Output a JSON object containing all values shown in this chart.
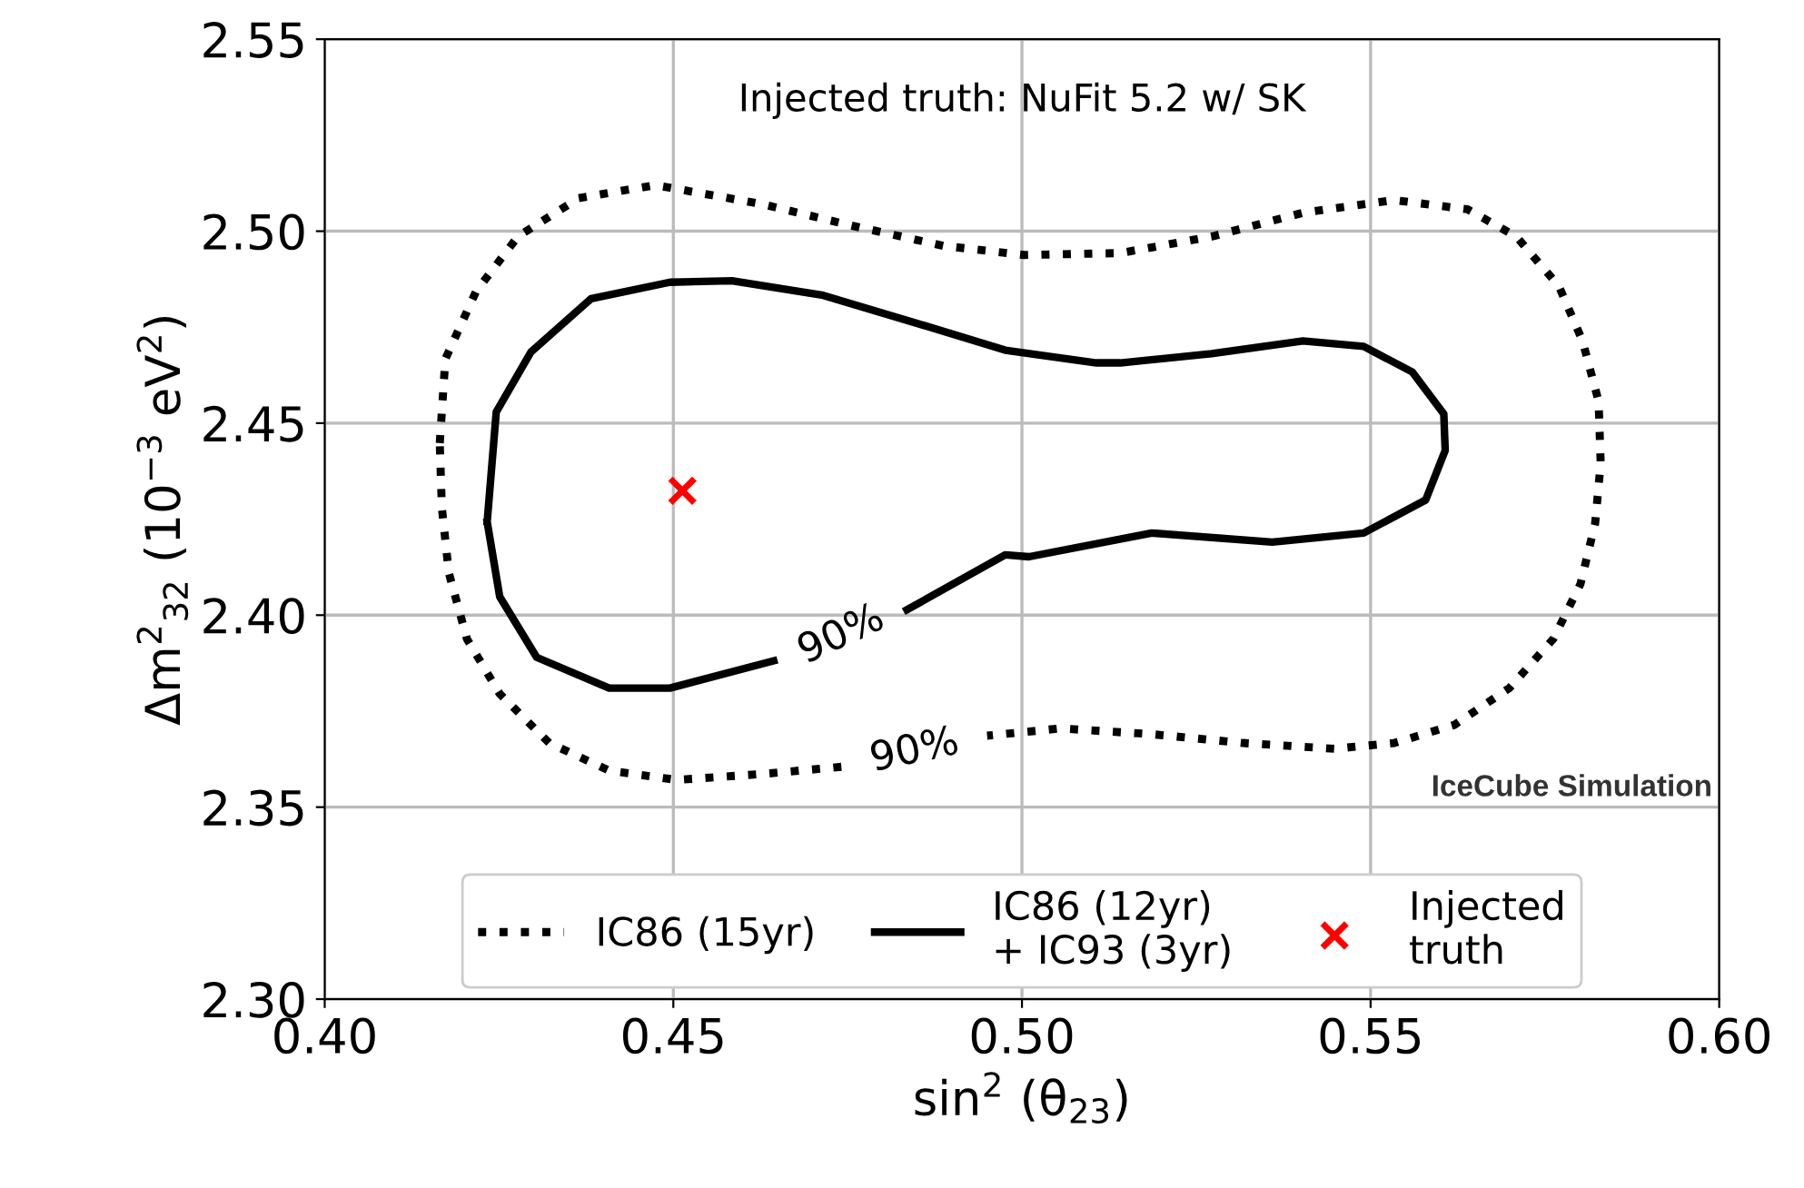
{
  "chart_data": {
    "type": "line",
    "xlabel": "sin$^{2}$ (θ$_{23}$)",
    "ylabel": "Δm$^{2}$$_{32}$ (10$^{−3}$ eV$^{2}$)",
    "xlim": [
      0.4,
      0.6
    ],
    "xticks": [
      {
        "value": 0.4,
        "label": "0.40"
      },
      {
        "value": 0.45,
        "label": "0.45"
      },
      {
        "value": 0.5,
        "label": "0.50"
      },
      {
        "value": 0.55,
        "label": "0.55"
      },
      {
        "value": 0.6,
        "label": "0.60"
      }
    ],
    "ylim": [
      2.3,
      2.55
    ],
    "yticks": [
      {
        "value": 2.3,
        "label": "2.30"
      },
      {
        "value": 2.35,
        "label": "2.35"
      },
      {
        "value": 2.4,
        "label": "2.40"
      },
      {
        "value": 2.45,
        "label": "2.45"
      },
      {
        "value": 2.5,
        "label": "2.50"
      },
      {
        "value": 2.55,
        "label": "2.55"
      }
    ],
    "grid": true,
    "legend": "bottom",
    "marker": "none",
    "series": [
      {
        "name": "IC86 (15yr)",
        "line_style": "dotted",
        "color": "#000000",
        "x": [
          0.4165,
          0.4173,
          0.4217,
          0.4277,
          0.4364,
          0.4474,
          0.4626,
          0.4757,
          0.4887,
          0.5003,
          0.5141,
          0.5272,
          0.5403,
          0.5534,
          0.5639,
          0.5709,
          0.577,
          0.5804,
          0.5827,
          0.583,
          0.5822,
          0.5801,
          0.5762,
          0.5699,
          0.562,
          0.5534,
          0.5448,
          0.5317,
          0.5186,
          0.5055,
          0.495,
          0.4846,
          0.4741,
          0.4626,
          0.4505,
          0.4408,
          0.4322,
          0.4251,
          0.4204,
          0.4178,
          0.4168,
          0.4165
        ],
        "values": [
          2.4448,
          2.4667,
          2.4843,
          2.4986,
          2.5086,
          2.512,
          2.5071,
          2.5014,
          2.4962,
          2.4938,
          2.4943,
          2.4986,
          2.5048,
          2.5081,
          2.5057,
          2.4986,
          2.4857,
          2.4714,
          2.4557,
          2.4395,
          2.4238,
          2.4081,
          2.3938,
          2.381,
          2.3714,
          2.3667,
          2.3652,
          2.3667,
          2.369,
          2.3705,
          2.3686,
          null,
          2.3605,
          2.3586,
          2.3571,
          2.3595,
          2.3667,
          2.3795,
          2.3938,
          2.411,
          2.428,
          2.4448
        ]
      },
      {
        "name": "IC86 (12yr)\n+ IC93 (3yr)",
        "line_style": "solid",
        "color": "#000000",
        "x": [
          0.4233,
          0.4246,
          0.4296,
          0.4382,
          0.4495,
          0.4584,
          0.4715,
          0.4846,
          0.4976,
          0.5107,
          0.5141,
          0.5272,
          0.5403,
          0.549,
          0.556,
          0.5605,
          0.5607,
          0.5579,
          0.549,
          0.5359,
          0.5186,
          0.501,
          0.4976,
          0.4835,
          0.4741,
          0.4644,
          0.4495,
          0.4408,
          0.4304,
          0.4251,
          0.4233
        ],
        "values": [
          2.4243,
          2.4529,
          2.4686,
          2.4824,
          2.4867,
          2.4871,
          2.4833,
          2.4762,
          2.469,
          2.4657,
          2.4657,
          2.4681,
          2.4714,
          2.47,
          2.4633,
          2.4524,
          2.4429,
          2.43,
          2.4214,
          2.419,
          2.4214,
          2.4152,
          2.4157,
          2.4014,
          null,
          2.3881,
          2.381,
          2.381,
          2.389,
          2.4048,
          2.4243
        ]
      },
      {
        "name": "Injected\ntruth",
        "type": "scatter",
        "marker": "cross",
        "color": "#ff0000",
        "x": [
          0.4513
        ],
        "values": [
          2.4324
        ]
      }
    ],
    "annotations": [
      "Injected truth: NuFit 5.2 w/ SK",
      "IceCube Simulation",
      "90%",
      "90%"
    ]
  }
}
